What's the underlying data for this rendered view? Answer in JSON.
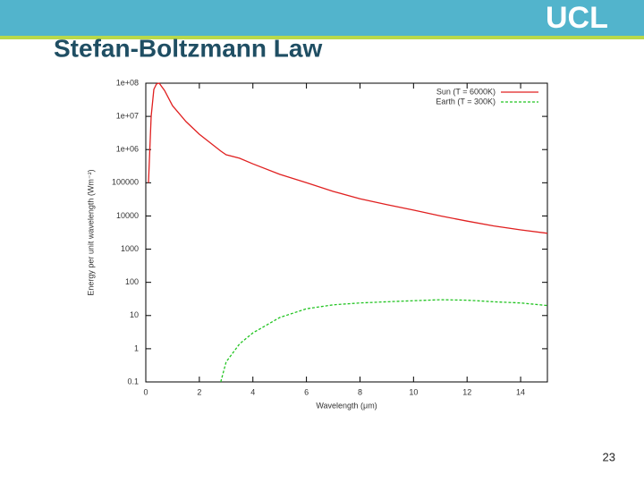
{
  "header": {
    "logo": "UCL",
    "title": "Stefan-Boltzmann Law"
  },
  "chart_data": {
    "type": "line",
    "x_label": "Wavelength (μm)",
    "y_label": "Energy per unit wavelength (Wm⁻²)",
    "x": [
      0.1,
      0.2,
      0.3,
      0.4,
      0.5,
      0.7,
      1,
      1.5,
      2,
      2.8,
      3,
      3.5,
      4,
      5,
      6,
      7,
      8,
      9,
      10,
      11,
      12,
      13,
      14,
      15
    ],
    "series": [
      {
        "name": "Sun (T = 6000K)",
        "color": "#e02020",
        "dash": false,
        "values": [
          100000,
          10000000,
          65000000,
          95000000,
          100000000,
          60000000,
          21000000,
          7000000,
          2900000,
          900000,
          700000,
          550000,
          370000,
          180000,
          100000,
          55000,
          33000,
          22000,
          15000,
          10000,
          7000,
          5000,
          3800,
          3000
        ]
      },
      {
        "name": "Earth (T = 300K)",
        "color": "#22c422",
        "dash": true,
        "values": [
          null,
          null,
          null,
          null,
          null,
          null,
          null,
          null,
          null,
          0.1,
          0.4,
          1.4,
          3,
          8.7,
          16,
          21,
          24,
          26,
          28,
          30,
          29,
          26,
          24,
          20
        ]
      }
    ],
    "xlim": [
      0,
      15
    ],
    "xticks": [
      0,
      2,
      4,
      6,
      8,
      10,
      12,
      14
    ],
    "ylim": [
      0.1,
      100000000
    ],
    "log_y": true,
    "yticks": [
      0.1,
      1,
      10,
      100,
      1000,
      10000,
      100000,
      {
        "value": 1000000,
        "label": "1e+06"
      },
      {
        "value": 10000000,
        "label": "1e+07"
      },
      {
        "value": 100000000,
        "label": "1e+08"
      }
    ],
    "legend": "top-right"
  },
  "footer": {
    "page": "23"
  }
}
